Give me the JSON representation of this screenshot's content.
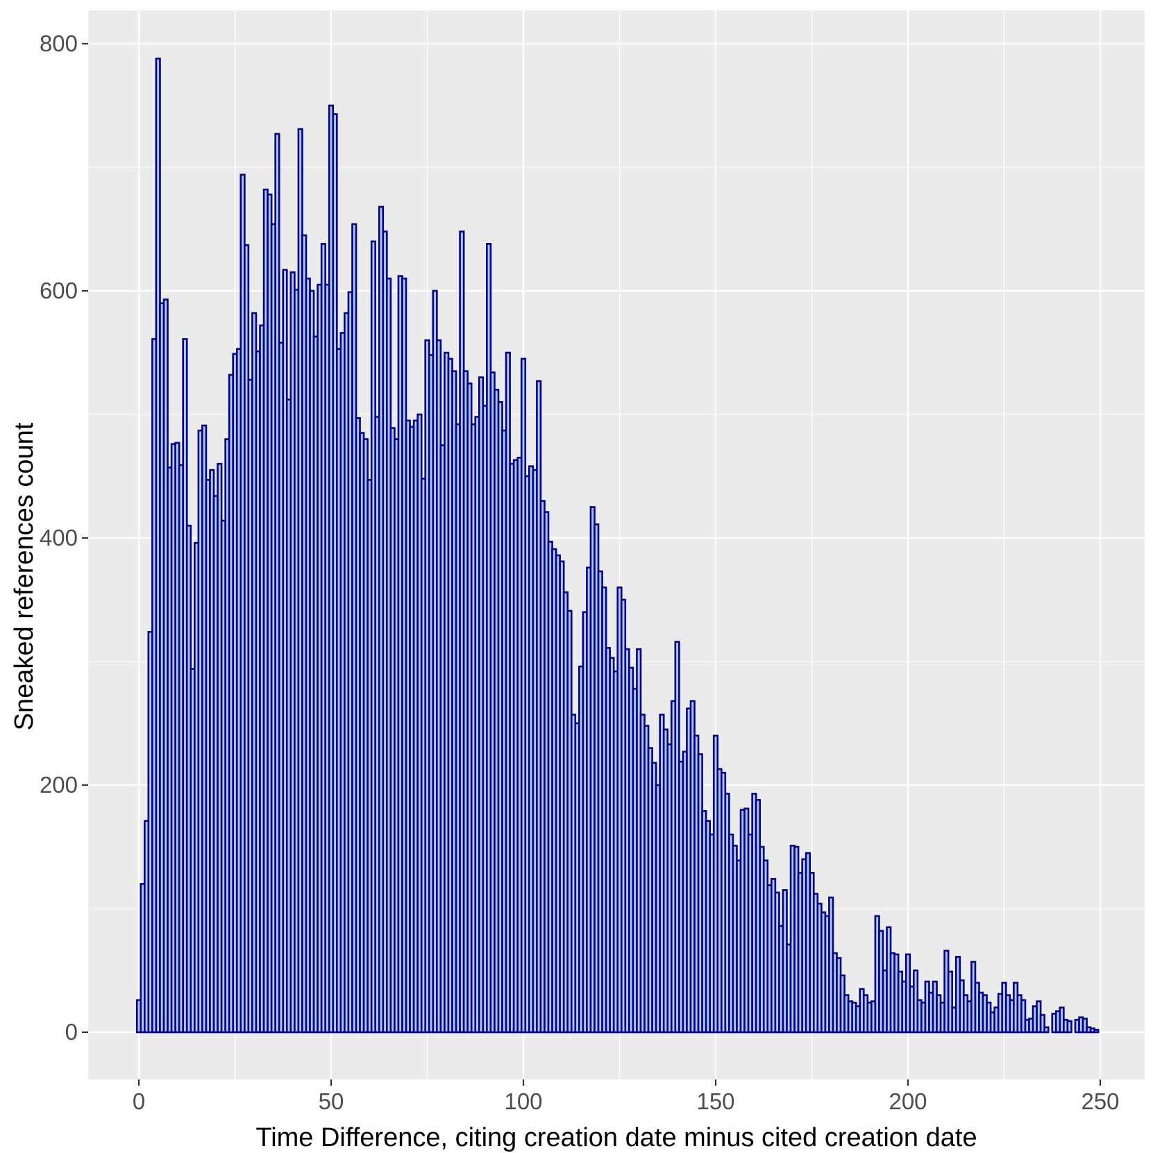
{
  "chart_data": {
    "type": "bar",
    "subtype": "histogram",
    "title": "",
    "xlabel": "Time Difference, citing creation date minus cited creation date",
    "ylabel": "Sneaked references count",
    "x_start": 0,
    "binwidth": 1,
    "xlim": [
      -12.5,
      262.5
    ],
    "ylim": [
      -37,
      827
    ],
    "grid": "on",
    "legend": "none",
    "x_ticks": [
      0,
      50,
      100,
      150,
      200,
      250
    ],
    "x_minor_ticks": [
      25,
      75,
      125,
      175,
      225
    ],
    "y_ticks": [
      0,
      200,
      400,
      600,
      800
    ],
    "y_minor_ticks": [
      100,
      300,
      500,
      700
    ],
    "colors": {
      "bar_outline": "#00008B",
      "bar_fill": "#AEC9E8",
      "panel_background": "#EBEBEB",
      "gridline": "#FFFFFF",
      "tick_mark": "#333333",
      "tick_label": "#4D4D4D",
      "axis_title": "#000000",
      "figure_background": "#FFFFFF"
    },
    "values": [
      26,
      120,
      171,
      324,
      561,
      788,
      590,
      593,
      457,
      476,
      477,
      459,
      561,
      410,
      294,
      396,
      487,
      491,
      447,
      455,
      434,
      460,
      414,
      480,
      532,
      549,
      553,
      694,
      637,
      528,
      582,
      551,
      572,
      682,
      678,
      654,
      727,
      558,
      617,
      512,
      615,
      601,
      731,
      645,
      610,
      600,
      563,
      605,
      638,
      605,
      750,
      743,
      553,
      566,
      582,
      599,
      654,
      497,
      485,
      480,
      447,
      640,
      498,
      668,
      648,
      610,
      489,
      480,
      612,
      610,
      495,
      490,
      495,
      500,
      448,
      560,
      548,
      600,
      560,
      475,
      550,
      545,
      535,
      492,
      648,
      535,
      525,
      492,
      498,
      530,
      507,
      638,
      534,
      520,
      510,
      487,
      550,
      460,
      463,
      465,
      545,
      450,
      458,
      455,
      527,
      430,
      421,
      397,
      391,
      386,
      381,
      356,
      341,
      257,
      250,
      296,
      340,
      376,
      425,
      411,
      373,
      360,
      311,
      303,
      292,
      360,
      350,
      310,
      295,
      278,
      310,
      257,
      248,
      230,
      218,
      200,
      257,
      245,
      233,
      268,
      316,
      219,
      227,
      262,
      268,
      240,
      225,
      179,
      171,
      160,
      240,
      213,
      210,
      193,
      160,
      151,
      139,
      180,
      181,
      160,
      193,
      188,
      150,
      139,
      119,
      124,
      113,
      86,
      115,
      71,
      151,
      150,
      129,
      140,
      145,
      129,
      112,
      104,
      97,
      94,
      109,
      64,
      60,
      46,
      30,
      25,
      24,
      21,
      35,
      30,
      24,
      25,
      94,
      82,
      50,
      85,
      64,
      63,
      49,
      41,
      63,
      37,
      50,
      26,
      24,
      41,
      32,
      41,
      30,
      24,
      66,
      49,
      20,
      61,
      42,
      30,
      25,
      57,
      40,
      32,
      30,
      24,
      16,
      20,
      31,
      40,
      30,
      26,
      40,
      30,
      26,
      10,
      11,
      21,
      25,
      14,
      4,
      0,
      15,
      17,
      20,
      10,
      9,
      0,
      10,
      12,
      11,
      4,
      3,
      2
    ]
  }
}
